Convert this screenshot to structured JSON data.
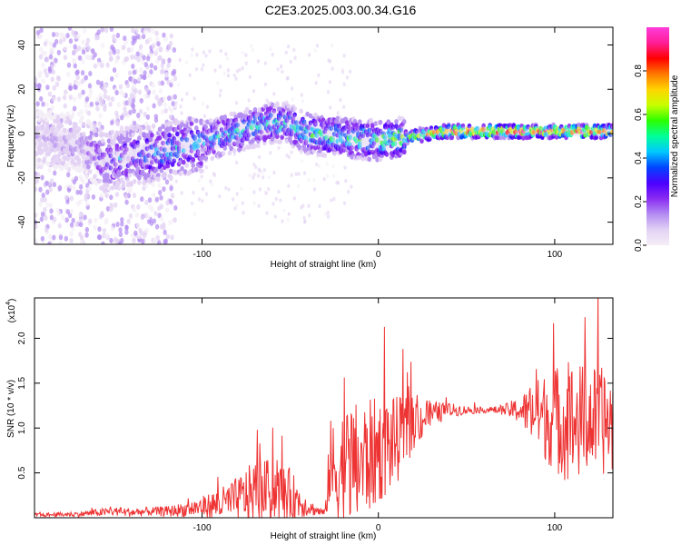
{
  "page": {
    "title": "C2E3.2025.003.00.34.G16"
  },
  "chart_data": [
    {
      "type": "heatmap",
      "title": "C2E3.2025.003.00.34.G16",
      "xlabel": "Height of straight line (km)",
      "ylabel": "Frequency (Hz)",
      "xlim": [
        -195,
        133
      ],
      "ylim": [
        -50,
        48
      ],
      "xticks": [
        -100,
        0,
        100
      ],
      "yticks": [
        -40,
        -20,
        0,
        20,
        40
      ],
      "colorbar": {
        "label": "Normalized spectral amplitude",
        "range": [
          0,
          1
        ],
        "ticks": [
          0.0,
          0.2,
          0.4,
          0.6,
          0.8
        ],
        "tick_labels": [
          "0.0",
          "0.2",
          "0.4",
          "0.6",
          "0.8"
        ],
        "colormap": [
          "#f4eef6",
          "#e3d2f4",
          "#b38cf2",
          "#8a2bf2",
          "#4b00ff",
          "#0044ff",
          "#00c8ff",
          "#00ff99",
          "#2bff00",
          "#c8ff00",
          "#ffd400",
          "#ff7800",
          "#ff0000",
          "#ff1e96",
          "#ff3cdc"
        ]
      },
      "ridge": {
        "x": [
          -195,
          -170,
          -155,
          -140,
          -120,
          -100,
          -80,
          -60,
          -50,
          -40,
          -20,
          0,
          20,
          40,
          60,
          80,
          100,
          110,
          133
        ],
        "frequency": [
          -2,
          -4,
          -13,
          -10,
          -8,
          -4,
          1,
          5,
          4,
          0,
          -2,
          -3,
          -1,
          1,
          1,
          1,
          1,
          1,
          1
        ],
        "peak_amplitude": [
          0.15,
          0.2,
          0.35,
          0.4,
          0.45,
          0.45,
          0.5,
          0.5,
          0.5,
          0.55,
          0.55,
          0.55,
          0.7,
          0.9,
          0.95,
          0.95,
          0.95,
          0.95,
          0.9
        ]
      }
    },
    {
      "type": "line",
      "xlabel": "Height of straight line (km)",
      "ylabel": "SNR (10 * v/v)",
      "scale_label": "(x10",
      "scale_exponent": "4",
      "xlim": [
        -195,
        133
      ],
      "ylim": [
        0,
        2.45
      ],
      "xticks": [
        -100,
        0,
        100
      ],
      "yticks": [
        0.5,
        1.0,
        1.5,
        2.0
      ],
      "ytick_labels": [
        "0.5",
        "1.0",
        "1.5",
        "2.0"
      ],
      "series": [
        {
          "color": "#ee3333",
          "x": [
            -195,
            -170,
            -150,
            -140,
            -130,
            -120,
            -110,
            -100,
            -90,
            -80,
            -70,
            -60,
            -50,
            -40,
            -35,
            -30,
            -28,
            -26,
            -20,
            -10,
            0,
            10,
            20,
            30,
            40,
            50,
            60,
            70,
            80,
            90,
            100,
            110,
            120,
            133
          ],
          "y": [
            0.03,
            0.04,
            0.07,
            0.06,
            0.07,
            0.07,
            0.09,
            0.12,
            0.15,
            0.2,
            0.3,
            0.3,
            0.25,
            0.12,
            0.08,
            0.05,
            0.6,
            0.5,
            0.55,
            0.6,
            0.75,
            0.85,
            1.05,
            1.15,
            1.2,
            1.2,
            1.2,
            1.2,
            1.2,
            1.15,
            1.1,
            1.05,
            1.1,
            1.05
          ],
          "spread": [
            0.02,
            0.03,
            0.05,
            0.05,
            0.05,
            0.06,
            0.08,
            0.12,
            0.18,
            0.25,
            0.35,
            0.35,
            0.3,
            0.1,
            0.06,
            0.05,
            0.5,
            0.6,
            0.7,
            0.7,
            0.6,
            0.5,
            0.3,
            0.15,
            0.08,
            0.05,
            0.03,
            0.05,
            0.15,
            0.4,
            0.6,
            0.7,
            0.6,
            0.6
          ]
        }
      ]
    }
  ]
}
